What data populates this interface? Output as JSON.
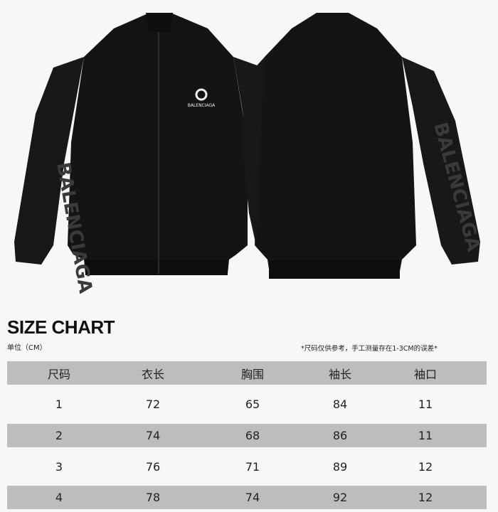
{
  "product": {
    "logo_text": "BALENCIAGA",
    "sleeve_text": "BALENCIAGA",
    "color": "#131313"
  },
  "size_chart": {
    "title": "SIZE CHART",
    "unit": "单位（CM）",
    "note": "*尺码仅供参考，手工测量存在1-3CM的误差*",
    "headers": [
      "尺码",
      "衣长",
      "胸围",
      "袖长",
      "袖口"
    ],
    "rows": [
      [
        "1",
        "72",
        "65",
        "84",
        "11"
      ],
      [
        "2",
        "74",
        "68",
        "86",
        "11"
      ],
      [
        "3",
        "76",
        "71",
        "89",
        "12"
      ],
      [
        "4",
        "78",
        "74",
        "92",
        "12"
      ]
    ]
  }
}
